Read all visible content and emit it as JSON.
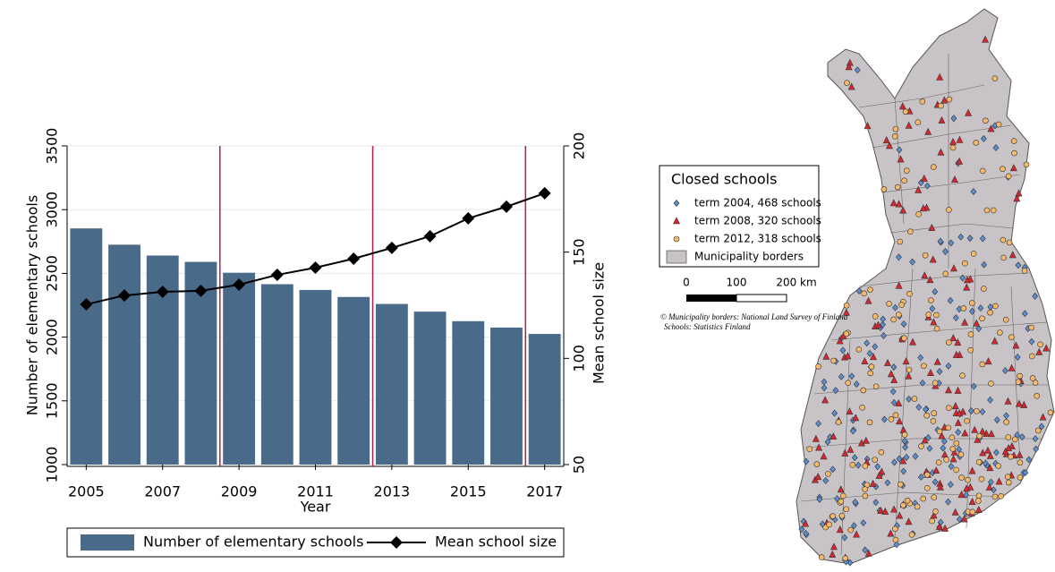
{
  "chart_data": {
    "type": "bar",
    "x": [
      2005,
      2006,
      2007,
      2008,
      2009,
      2010,
      2011,
      2012,
      2013,
      2014,
      2015,
      2016,
      2017
    ],
    "xlim": [
      2004.5,
      2017.5
    ],
    "xticks": [
      2005,
      2007,
      2009,
      2011,
      2013,
      2015,
      2017
    ],
    "xlabel": "Year",
    "ylabel": "Number of elementary schools",
    "y2label": "Mean school size",
    "ylim": [
      1000,
      3500
    ],
    "yticks": [
      1000,
      1500,
      2000,
      2500,
      3000,
      3500
    ],
    "y2lim": [
      50,
      200
    ],
    "y2ticks": [
      50,
      100,
      150,
      200
    ],
    "grid": true,
    "vlines": [
      2008.5,
      2012.5,
      2016.5
    ],
    "vline_color": "#b0204a",
    "legend": "bottom",
    "series": [
      {
        "name": "Number of elementary schools",
        "type": "bar",
        "color": "#4a6a8a",
        "values": [
          2853,
          2725,
          2640,
          2590,
          2505,
          2415,
          2370,
          2315,
          2260,
          2200,
          2125,
          2075,
          2025
        ]
      },
      {
        "name": "Mean school size",
        "type": "line",
        "axis": "y2",
        "color": "#000000",
        "values": [
          125.4,
          129.6,
          131.3,
          131.8,
          134.7,
          139.3,
          142.7,
          146.9,
          152.0,
          157.5,
          165.9,
          171.4,
          177.7
        ]
      }
    ]
  },
  "map": {
    "legend": {
      "title": "Closed schools",
      "entries": [
        {
          "label": "term 2004, 468 schools",
          "color": "#5b8fd0",
          "marker": "diamond"
        },
        {
          "label": "term 2008, 320 schools",
          "color": "#d8262e",
          "marker": "triangle"
        },
        {
          "label": "term 2012, 318 schools",
          "color": "#f6b96a",
          "marker": "circle"
        },
        {
          "label": "Municipality borders",
          "color": "#c8c3c6",
          "marker": "box"
        }
      ]
    },
    "scale_bar": {
      "labels": [
        "0",
        "100",
        "200 km"
      ]
    },
    "credits": [
      "© Municipality borders: National Land Survey of Finland",
      "Schools: Statistics Finland"
    ]
  }
}
